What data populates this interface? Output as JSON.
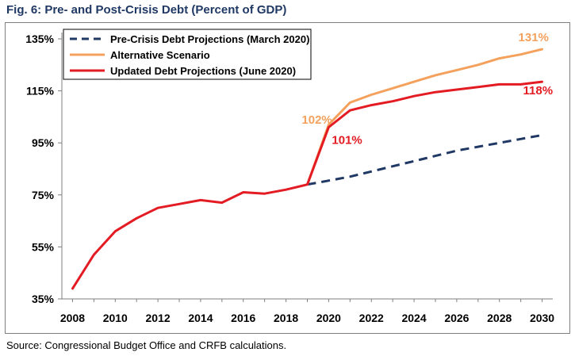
{
  "title": "Fig. 6: Pre- and Post-Crisis Debt (Percent of GDP)",
  "source": "Source: Congressional Budget Office and CRFB calculations.",
  "chart_data": {
    "type": "line",
    "title": "Fig. 6: Pre- and Post-Crisis Debt (Percent of GDP)",
    "xlabel": "",
    "ylabel": "",
    "xlim": [
      2007.5,
      2030.5
    ],
    "ylim": [
      35,
      135
    ],
    "x_ticks": [
      2008,
      2010,
      2012,
      2014,
      2016,
      2018,
      2020,
      2022,
      2024,
      2026,
      2028,
      2030
    ],
    "y_ticks": [
      35,
      55,
      75,
      95,
      115,
      135
    ],
    "y_tick_labels": [
      "35%",
      "55%",
      "75%",
      "95%",
      "115%",
      "135%"
    ],
    "grid": false,
    "legend_position": "top-left",
    "series": [
      {
        "name": "Pre-Crisis Debt Projections (March 2020)",
        "color": "#1f3864",
        "style": "dashed",
        "x": [
          2019,
          2020,
          2021,
          2022,
          2023,
          2024,
          2025,
          2026,
          2027,
          2028,
          2029,
          2030
        ],
        "values": [
          79,
          80.5,
          82,
          84,
          86,
          88,
          90,
          92,
          93.5,
          95,
          96.5,
          98
        ]
      },
      {
        "name": "Alternative Scenario",
        "color": "#f4a15d",
        "style": "solid",
        "x": [
          2019,
          2020,
          2021,
          2022,
          2023,
          2024,
          2025,
          2026,
          2027,
          2028,
          2029,
          2030
        ],
        "values": [
          79,
          102,
          110.5,
          113.5,
          116,
          118.5,
          121,
          123,
          125,
          127.5,
          129,
          131
        ]
      },
      {
        "name": "Updated Debt Projections (June 2020)",
        "color": "#e31b23",
        "style": "solid",
        "x": [
          2008,
          2009,
          2010,
          2011,
          2012,
          2013,
          2014,
          2015,
          2016,
          2017,
          2018,
          2019,
          2020,
          2021,
          2022,
          2023,
          2024,
          2025,
          2026,
          2027,
          2028,
          2029,
          2030
        ],
        "values": [
          39,
          52,
          61,
          66,
          70,
          71.5,
          73,
          72,
          76,
          75.5,
          77,
          79,
          101,
          107.5,
          109.5,
          111,
          113,
          114.5,
          115.5,
          116.5,
          117.5,
          117.5,
          118.5
        ]
      }
    ],
    "annotations": [
      {
        "text": "102%",
        "x": 2020,
        "y": 102,
        "color": "#f4a15d"
      },
      {
        "text": "101%",
        "x": 2020,
        "y": 101,
        "color": "#e31b23"
      },
      {
        "text": "131%",
        "x": 2030,
        "y": 131,
        "color": "#f4a15d"
      },
      {
        "text": "118%",
        "x": 2030,
        "y": 118,
        "color": "#e31b23"
      }
    ]
  }
}
